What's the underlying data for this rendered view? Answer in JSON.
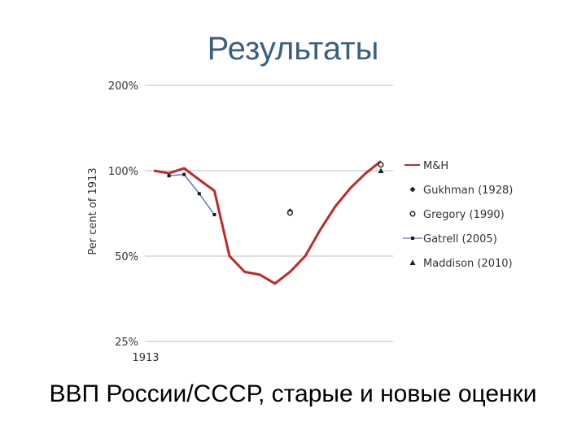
{
  "slide": {
    "title": "Результаты",
    "subtitle": "ВВП России/СССР, старые и новые оценки"
  },
  "chart_data": {
    "type": "line",
    "title": "",
    "xlabel": "",
    "ylabel": "Per cent of 1913",
    "yscale": "log",
    "ylim": [
      0.25,
      2.0
    ],
    "xlim": [
      1913,
      1928
    ],
    "y_ticks": [
      {
        "value": 2.0,
        "label": "200%"
      },
      {
        "value": 1.0,
        "label": "100%"
      },
      {
        "value": 0.5,
        "label": "50%"
      },
      {
        "value": 0.25,
        "label": "25%"
      }
    ],
    "x_ticks": [
      {
        "value": 1913,
        "label": "1913"
      }
    ],
    "grid": true,
    "legend_position": "right",
    "series": [
      {
        "name": "M&H",
        "style": "line",
        "color": "#c0282b",
        "points": [
          [
            1913,
            1.0
          ],
          [
            1914,
            0.98
          ],
          [
            1915,
            1.02
          ],
          [
            1916,
            0.93
          ],
          [
            1917,
            0.85
          ],
          [
            1918,
            0.5
          ],
          [
            1919,
            0.44
          ],
          [
            1920,
            0.43
          ],
          [
            1921,
            0.4
          ],
          [
            1922,
            0.44
          ],
          [
            1923,
            0.5
          ],
          [
            1924,
            0.62
          ],
          [
            1925,
            0.75
          ],
          [
            1926,
            0.87
          ],
          [
            1927,
            0.98
          ],
          [
            1928,
            1.08
          ]
        ]
      },
      {
        "name": "Gukhman (1928)",
        "style": "diamond",
        "color": "#222222",
        "points": [
          [
            1922,
            0.72
          ],
          [
            1928,
            1.05
          ]
        ]
      },
      {
        "name": "Gregory (1990)",
        "style": "circle",
        "color": "#222222",
        "points": [
          [
            1922,
            0.71
          ],
          [
            1928,
            1.05
          ]
        ]
      },
      {
        "name": "Gatrell (2005)",
        "style": "line-square",
        "color": "#5b7bb5",
        "points": [
          [
            1914,
            0.96
          ],
          [
            1915,
            0.97
          ],
          [
            1916,
            0.83
          ],
          [
            1917,
            0.7
          ]
        ]
      },
      {
        "name": "Maddison (2010)",
        "style": "triangle",
        "color": "#222222",
        "points": [
          [
            1928,
            1.0
          ]
        ]
      }
    ]
  }
}
